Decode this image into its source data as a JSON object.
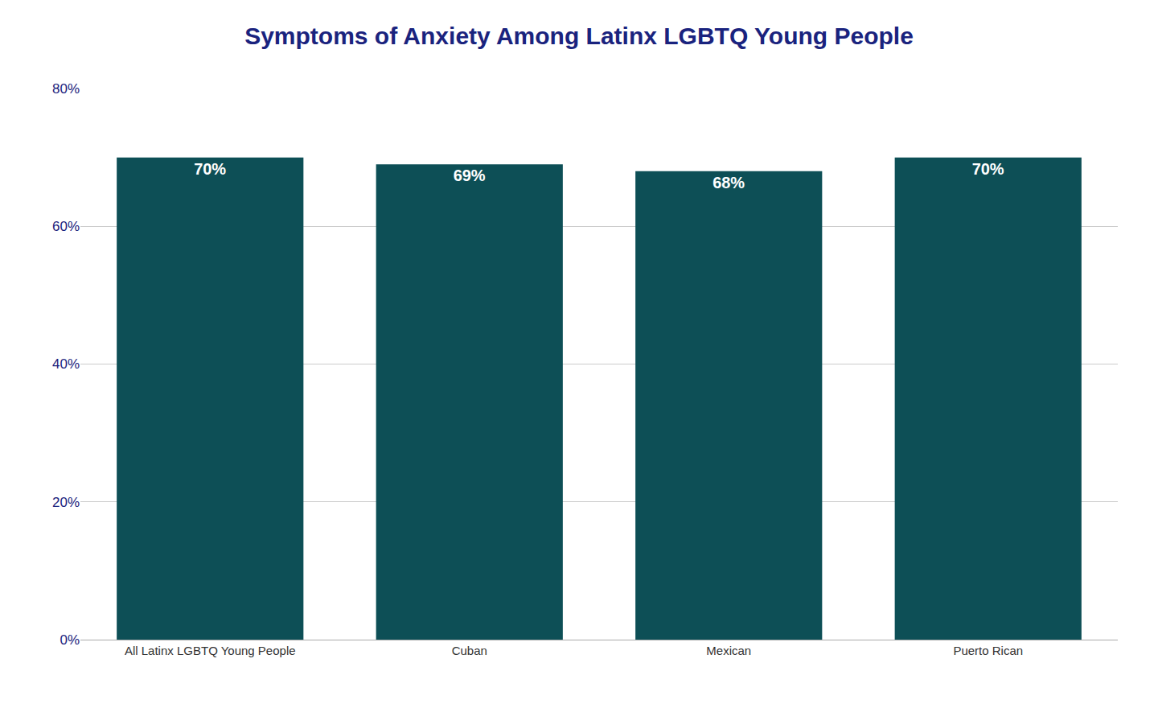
{
  "chart_data": {
    "type": "bar",
    "title": "Symptoms of Anxiety Among Latinx LGBTQ Young People",
    "categories": [
      "All Latinx LGBTQ Young People",
      "Cuban",
      "Mexican",
      "Puerto Rican"
    ],
    "values": [
      70,
      69,
      68,
      70
    ],
    "value_labels": [
      "70%",
      "69%",
      "68%",
      "70%"
    ],
    "data_labels": true,
    "color": "#0d4f56",
    "ylim": [
      0,
      80
    ],
    "yticks": [
      {
        "value": 0,
        "label": "0%"
      },
      {
        "value": 20,
        "label": "20%"
      },
      {
        "value": 40,
        "label": "40%"
      },
      {
        "value": 60,
        "label": "60%"
      },
      {
        "value": 80,
        "label": "80%"
      }
    ],
    "grid": true
  }
}
